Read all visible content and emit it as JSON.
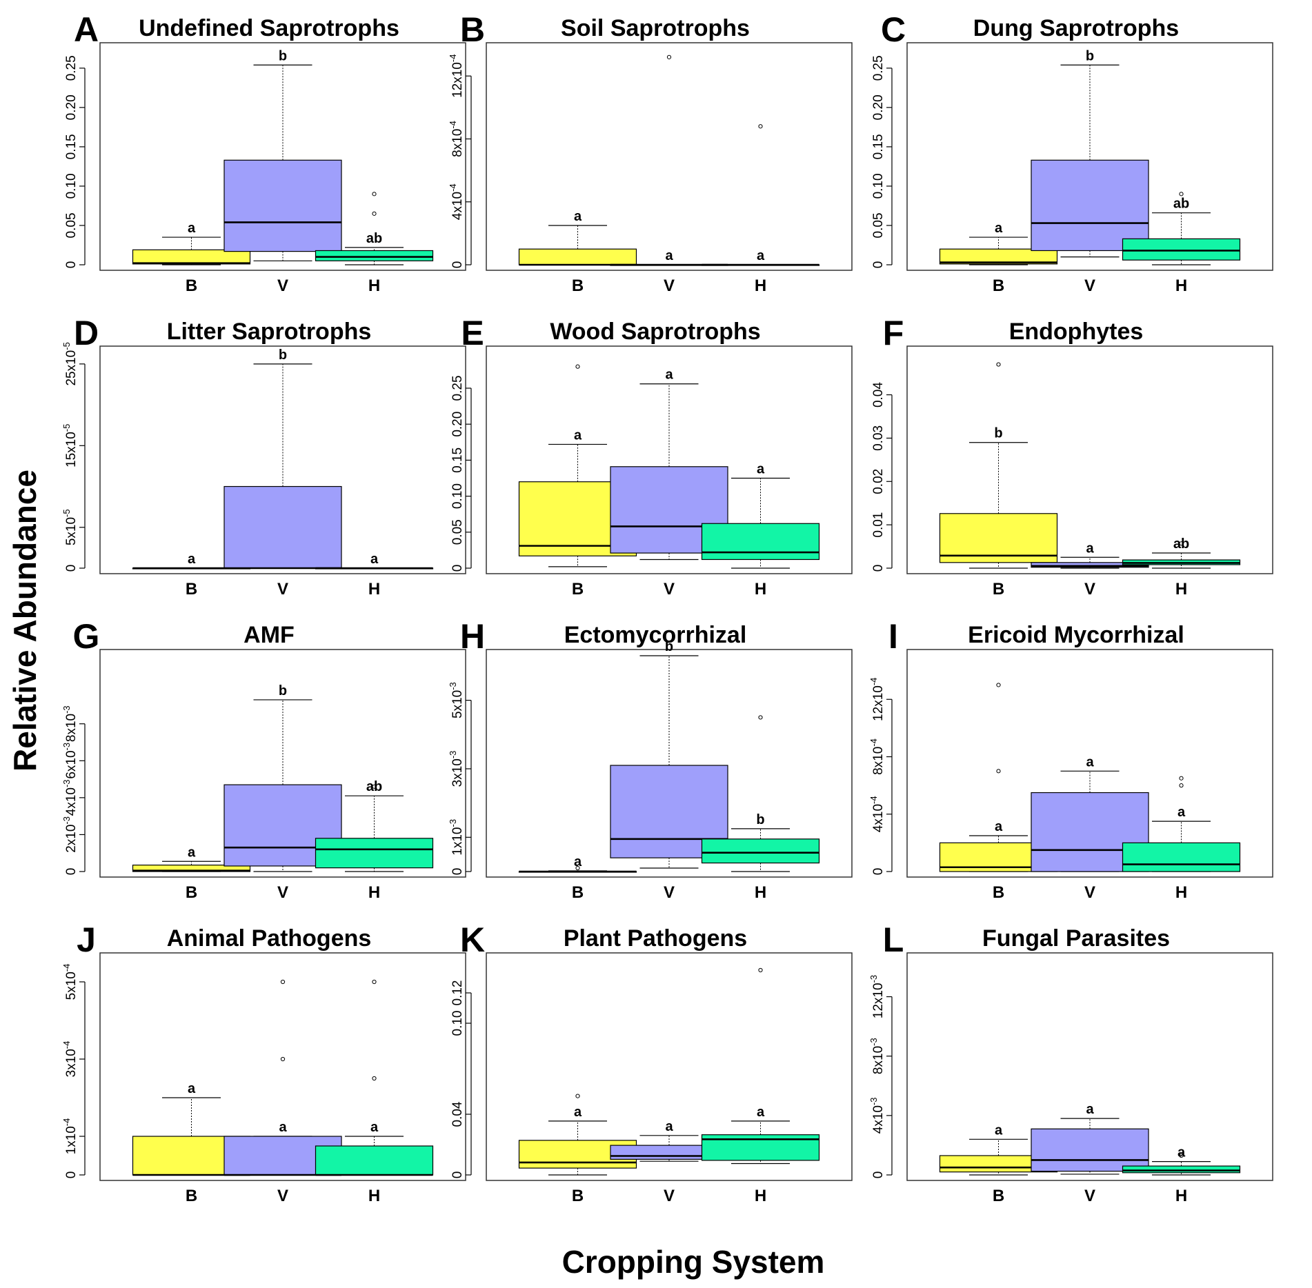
{
  "figure": {
    "ylabel": "Relative Abundance",
    "xlabel": "Cropping System"
  },
  "categories": [
    "B",
    "V",
    "H"
  ],
  "colors": {
    "B": "#ffff4d",
    "V": "#9f9ffb",
    "H": "#12f5a6",
    "outline": "#000000"
  },
  "chart_data": [
    {
      "letter": "A",
      "title": "Undefined Saprotrophs",
      "type": "box",
      "ylim": [
        0,
        0.27
      ],
      "ticks": [
        {
          "v": 0,
          "label": "0"
        },
        {
          "v": 0.05,
          "label": "0.05"
        },
        {
          "v": 0.1,
          "label": "0.10"
        },
        {
          "v": 0.15,
          "label": "0.15"
        },
        {
          "v": 0.2,
          "label": "0.20"
        },
        {
          "v": 0.25,
          "label": "0.25"
        }
      ],
      "boxes": [
        {
          "cat": "B",
          "min": 0,
          "q1": 0.001,
          "median": 0.002,
          "q3": 0.019,
          "max": 0.035,
          "outliers": [],
          "sig": "a"
        },
        {
          "cat": "V",
          "min": 0.005,
          "q1": 0.017,
          "median": 0.054,
          "q3": 0.133,
          "max": 0.254,
          "outliers": [],
          "sig": "b"
        },
        {
          "cat": "H",
          "min": 0,
          "q1": 0.005,
          "median": 0.01,
          "q3": 0.018,
          "max": 0.022,
          "outliers": [
            0.065,
            0.09
          ],
          "sig": "ab"
        }
      ]
    },
    {
      "letter": "B",
      "title": "Soil Saprotrophs",
      "type": "box",
      "ylim": [
        0,
        0.00135
      ],
      "ticks": [
        {
          "v": 0,
          "label": "0"
        },
        {
          "v": 0.0004,
          "label": "4x10",
          "exp": "-4"
        },
        {
          "v": 0.0008,
          "label": "8x10",
          "exp": "-4"
        },
        {
          "v": 0.0012,
          "label": "12x10",
          "exp": "-4"
        }
      ],
      "boxes": [
        {
          "cat": "B",
          "min": 0,
          "q1": 0,
          "median": 0,
          "q3": 0.0001,
          "max": 0.00025,
          "outliers": [],
          "sig": "a"
        },
        {
          "cat": "V",
          "min": 0,
          "q1": 0,
          "median": 0,
          "q3": 0,
          "max": 0,
          "outliers": [
            0.00132
          ],
          "sig": "a"
        },
        {
          "cat": "H",
          "min": 0,
          "q1": 0,
          "median": 0,
          "q3": 0,
          "max": 0,
          "outliers": [
            0.00088
          ],
          "sig": "a"
        }
      ]
    },
    {
      "letter": "C",
      "title": "Dung Saprotrophs",
      "type": "box",
      "ylim": [
        0,
        0.27
      ],
      "ticks": [
        {
          "v": 0,
          "label": "0"
        },
        {
          "v": 0.05,
          "label": "0.05"
        },
        {
          "v": 0.1,
          "label": "0.10"
        },
        {
          "v": 0.15,
          "label": "0.15"
        },
        {
          "v": 0.2,
          "label": "0.20"
        },
        {
          "v": 0.25,
          "label": "0.25"
        }
      ],
      "boxes": [
        {
          "cat": "B",
          "min": 0,
          "q1": 0.001,
          "median": 0.003,
          "q3": 0.02,
          "max": 0.035,
          "outliers": [],
          "sig": "a"
        },
        {
          "cat": "V",
          "min": 0.01,
          "q1": 0.018,
          "median": 0.053,
          "q3": 0.133,
          "max": 0.254,
          "outliers": [],
          "sig": "b"
        },
        {
          "cat": "H",
          "min": 0,
          "q1": 0.006,
          "median": 0.018,
          "q3": 0.033,
          "max": 0.066,
          "outliers": [
            0.09
          ],
          "sig": "ab"
        }
      ]
    },
    {
      "letter": "D",
      "title": "Litter Saprotrophs",
      "type": "box",
      "ylim": [
        0,
        0.00026
      ],
      "ticks": [
        {
          "v": 0,
          "label": "0"
        },
        {
          "v": 5e-05,
          "label": "5x10",
          "exp": "-5"
        },
        {
          "v": 0.00015,
          "label": "15x10",
          "exp": "-5"
        },
        {
          "v": 0.00025,
          "label": "25x10",
          "exp": "-5"
        }
      ],
      "boxes": [
        {
          "cat": "B",
          "min": 0,
          "q1": 0,
          "median": 0,
          "q3": 0,
          "max": 0,
          "outliers": [],
          "sig": "a"
        },
        {
          "cat": "V",
          "min": 0,
          "q1": 0,
          "median": 0,
          "q3": 0.0001,
          "max": 0.00025,
          "outliers": [],
          "sig": "b"
        },
        {
          "cat": "H",
          "min": 0,
          "q1": 0,
          "median": 0,
          "q3": 0,
          "max": 0,
          "outliers": [],
          "sig": "a"
        }
      ]
    },
    {
      "letter": "E",
      "title": "Wood Saprotrophs",
      "type": "box",
      "ylim": [
        0,
        0.295
      ],
      "ticks": [
        {
          "v": 0,
          "label": "0"
        },
        {
          "v": 0.05,
          "label": "0.05"
        },
        {
          "v": 0.1,
          "label": "0.10"
        },
        {
          "v": 0.15,
          "label": "0.15"
        },
        {
          "v": 0.2,
          "label": "0.20"
        },
        {
          "v": 0.25,
          "label": "0.25"
        }
      ],
      "boxes": [
        {
          "cat": "B",
          "min": 0.002,
          "q1": 0.017,
          "median": 0.031,
          "q3": 0.12,
          "max": 0.172,
          "outliers": [
            0.28
          ],
          "sig": "a"
        },
        {
          "cat": "V",
          "min": 0.012,
          "q1": 0.021,
          "median": 0.058,
          "q3": 0.141,
          "max": 0.256,
          "outliers": [],
          "sig": "a"
        },
        {
          "cat": "H",
          "min": 0,
          "q1": 0.012,
          "median": 0.022,
          "q3": 0.062,
          "max": 0.125,
          "outliers": [],
          "sig": "a"
        }
      ]
    },
    {
      "letter": "F",
      "title": "Endophytes",
      "type": "box",
      "ylim": [
        0,
        0.049
      ],
      "ticks": [
        {
          "v": 0,
          "label": "0"
        },
        {
          "v": 0.01,
          "label": "0.01"
        },
        {
          "v": 0.02,
          "label": "0.02"
        },
        {
          "v": 0.03,
          "label": "0.03"
        },
        {
          "v": 0.04,
          "label": "0.04"
        }
      ],
      "boxes": [
        {
          "cat": "B",
          "min": 0,
          "q1": 0.0013,
          "median": 0.0029,
          "q3": 0.0126,
          "max": 0.029,
          "outliers": [
            0.047
          ],
          "sig": "b"
        },
        {
          "cat": "V",
          "min": 0,
          "q1": 0.0002,
          "median": 0.0005,
          "q3": 0.0013,
          "max": 0.0025,
          "outliers": [],
          "sig": "a"
        },
        {
          "cat": "H",
          "min": 0,
          "q1": 0.0008,
          "median": 0.0012,
          "q3": 0.0019,
          "max": 0.0035,
          "outliers": [
            0.0057
          ],
          "sig": "ab"
        }
      ]
    },
    {
      "letter": "G",
      "title": "AMF",
      "type": "box",
      "ylim": [
        0,
        0.0115
      ],
      "ticks": [
        {
          "v": 0,
          "label": "0"
        },
        {
          "v": 0.002,
          "label": "2x10",
          "exp": "-3"
        },
        {
          "v": 0.004,
          "label": "4x10",
          "exp": "-3"
        },
        {
          "v": 0.006,
          "label": "6x10",
          "exp": "-3"
        },
        {
          "v": 0.008,
          "label": "8x10",
          "exp": "-3"
        }
      ],
      "boxes": [
        {
          "cat": "B",
          "min": 0,
          "q1": 0,
          "median": 5e-05,
          "q3": 0.00035,
          "max": 0.00055,
          "outliers": [
            0.0011
          ],
          "sig": "a"
        },
        {
          "cat": "V",
          "min": 0,
          "q1": 0.0003,
          "median": 0.0013,
          "q3": 0.0047,
          "max": 0.0093,
          "outliers": [],
          "sig": "b"
        },
        {
          "cat": "H",
          "min": 0,
          "q1": 0.0002,
          "median": 0.0012,
          "q3": 0.0018,
          "max": 0.0041,
          "outliers": [
            0.0046
          ],
          "sig": "ab"
        }
      ]
    },
    {
      "letter": "H",
      "title": "Ectomycorrhizal",
      "type": "box",
      "ylim": [
        0,
        0.0062
      ],
      "ticks": [
        {
          "v": 0,
          "label": "0"
        },
        {
          "v": 0.001,
          "label": "1x10",
          "exp": "-3"
        },
        {
          "v": 0.003,
          "label": "3x10",
          "exp": "-3"
        },
        {
          "v": 0.005,
          "label": "5x10",
          "exp": "-3"
        }
      ],
      "boxes": [
        {
          "cat": "B",
          "min": 0,
          "q1": 0,
          "median": 0,
          "q3": 0,
          "max": 2e-05,
          "outliers": [
            0.0001
          ],
          "sig": "a"
        },
        {
          "cat": "V",
          "min": 0.0001,
          "q1": 0.0004,
          "median": 0.00095,
          "q3": 0.0031,
          "max": 0.0063,
          "outliers": [],
          "sig": "b"
        },
        {
          "cat": "H",
          "min": 0,
          "q1": 0.00025,
          "median": 0.00055,
          "q3": 0.00095,
          "max": 0.00125,
          "outliers": [
            0.0045
          ],
          "sig": "b"
        }
      ]
    },
    {
      "letter": "I",
      "title": "Ericoid Mycorrhizal",
      "type": "box",
      "ylim": [
        0,
        0.00148
      ],
      "ticks": [
        {
          "v": 0,
          "label": "0"
        },
        {
          "v": 0.0004,
          "label": "4x10",
          "exp": "-4"
        },
        {
          "v": 0.0008,
          "label": "8x10",
          "exp": "-4"
        },
        {
          "v": 0.0012,
          "label": "12x10",
          "exp": "-4"
        }
      ],
      "boxes": [
        {
          "cat": "B",
          "min": 0,
          "q1": 0,
          "median": 3e-05,
          "q3": 0.0002,
          "max": 0.00025,
          "outliers": [
            0.0007,
            0.0013
          ],
          "sig": "a"
        },
        {
          "cat": "V",
          "min": 0,
          "q1": 0,
          "median": 0.00015,
          "q3": 0.00055,
          "max": 0.0007,
          "outliers": [],
          "sig": "a"
        },
        {
          "cat": "H",
          "min": 0,
          "q1": 0,
          "median": 5e-05,
          "q3": 0.0002,
          "max": 0.00035,
          "outliers": [
            0.0006,
            0.00065
          ],
          "sig": "a"
        }
      ]
    },
    {
      "letter": "J",
      "title": "Animal Pathogens",
      "type": "box",
      "ylim": [
        0,
        0.00055
      ],
      "ticks": [
        {
          "v": 0,
          "label": "0"
        },
        {
          "v": 0.0001,
          "label": "1x10",
          "exp": "-4"
        },
        {
          "v": 0.0003,
          "label": "3x10",
          "exp": "-4"
        },
        {
          "v": 0.0005,
          "label": "5x10",
          "exp": "-4"
        }
      ],
      "boxes": [
        {
          "cat": "B",
          "min": 0,
          "q1": 0,
          "median": 0,
          "q3": 0.0001,
          "max": 0.0002,
          "outliers": [],
          "sig": "a"
        },
        {
          "cat": "V",
          "min": 0,
          "q1": 0,
          "median": 0,
          "q3": 0.0001,
          "max": 0.0001,
          "outliers": [
            0.0003,
            0.0005
          ],
          "sig": "a"
        },
        {
          "cat": "H",
          "min": 0,
          "q1": 0,
          "median": 0,
          "q3": 7.5e-05,
          "max": 0.0001,
          "outliers": [
            0.00025,
            0.0005
          ],
          "sig": "a"
        }
      ]
    },
    {
      "letter": "K",
      "title": "Plant Pathogens",
      "type": "box",
      "ylim": [
        0,
        0.14
      ],
      "ticks": [
        {
          "v": 0,
          "label": "0"
        },
        {
          "v": 0.04,
          "label": "0.04"
        },
        {
          "v": 0.1,
          "label": "0.10"
        },
        {
          "v": 0.12,
          "label": "0.12"
        }
      ],
      "boxes": [
        {
          "cat": "B",
          "min": 0,
          "q1": 0.0045,
          "median": 0.0082,
          "q3": 0.0228,
          "max": 0.0355,
          "outliers": [
            0.052
          ],
          "sig": "a"
        },
        {
          "cat": "V",
          "min": 0.009,
          "q1": 0.0103,
          "median": 0.0125,
          "q3": 0.0195,
          "max": 0.026,
          "outliers": [],
          "sig": "a"
        },
        {
          "cat": "H",
          "min": 0.0075,
          "q1": 0.0096,
          "median": 0.0235,
          "q3": 0.0265,
          "max": 0.0355,
          "outliers": [
            0.135
          ],
          "sig": "a"
        }
      ]
    },
    {
      "letter": "L",
      "title": "Fungal Parasites",
      "type": "box",
      "ylim": [
        0,
        0.0143
      ],
      "ticks": [
        {
          "v": 0,
          "label": "0"
        },
        {
          "v": 0.004,
          "label": "4x10",
          "exp": "-3"
        },
        {
          "v": 0.008,
          "label": "8x10",
          "exp": "-3"
        },
        {
          "v": 0.012,
          "label": "12x10",
          "exp": "-3"
        }
      ],
      "boxes": [
        {
          "cat": "B",
          "min": 0,
          "q1": 0.0002,
          "median": 0.0005,
          "q3": 0.0013,
          "max": 0.0024,
          "outliers": [],
          "sig": "a"
        },
        {
          "cat": "V",
          "min": 5e-05,
          "q1": 0.00025,
          "median": 0.001,
          "q3": 0.0031,
          "max": 0.0038,
          "outliers": [],
          "sig": "a"
        },
        {
          "cat": "H",
          "min": 0,
          "q1": 0.00015,
          "median": 0.0003,
          "q3": 0.0006,
          "max": 0.0009,
          "outliers": [
            0.0013
          ],
          "sig": "a"
        }
      ]
    }
  ]
}
